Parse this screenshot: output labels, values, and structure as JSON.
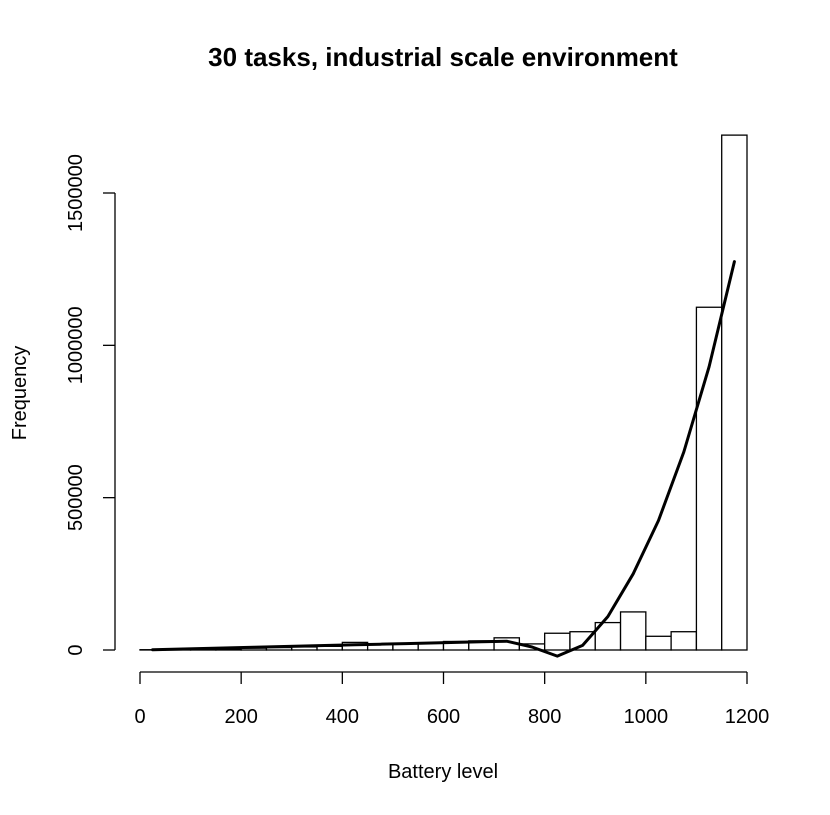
{
  "chart_data": {
    "type": "bar",
    "subtype": "histogram",
    "title": "30 tasks, industrial scale environment",
    "xlabel": "Battery level",
    "ylabel": "Frequency",
    "xlim": [
      0,
      1200
    ],
    "ylim": [
      0,
      1700000
    ],
    "grid": false,
    "legend": "none",
    "x_ticks": [
      0,
      200,
      400,
      600,
      800,
      1000,
      1200
    ],
    "x_tick_labels": [
      "0",
      "200",
      "400",
      "600",
      "800",
      "1000",
      "1200"
    ],
    "y_ticks": [
      0,
      500000,
      1000000,
      1500000
    ],
    "y_tick_labels": [
      "0",
      "500000",
      "1000000",
      "1500000"
    ],
    "bin_width": 50,
    "bin_edges": [
      0,
      50,
      100,
      150,
      200,
      250,
      300,
      350,
      400,
      450,
      500,
      550,
      600,
      650,
      700,
      750,
      800,
      850,
      900,
      950,
      1000,
      1050,
      1100,
      1150,
      1200
    ],
    "values": [
      1000,
      2000,
      3000,
      4000,
      6000,
      8000,
      10000,
      12000,
      25000,
      20000,
      22000,
      24000,
      28000,
      30000,
      40000,
      20000,
      55000,
      60000,
      90000,
      125000,
      45000,
      60000,
      1125000,
      1690000
    ],
    "series": [
      {
        "type": "line",
        "x": [
          25,
          75,
          125,
          175,
          225,
          275,
          325,
          375,
          425,
          475,
          525,
          575,
          625,
          675,
          725,
          775,
          825,
          875,
          925,
          975,
          1025,
          1075,
          1125,
          1175
        ],
        "values": [
          1000,
          3000,
          5000,
          7000,
          9000,
          11000,
          13000,
          15000,
          17000,
          19000,
          21000,
          23000,
          25000,
          27000,
          29000,
          10000,
          -20000,
          15000,
          110000,
          250000,
          425000,
          650000,
          930000,
          1275000
        ]
      }
    ]
  }
}
